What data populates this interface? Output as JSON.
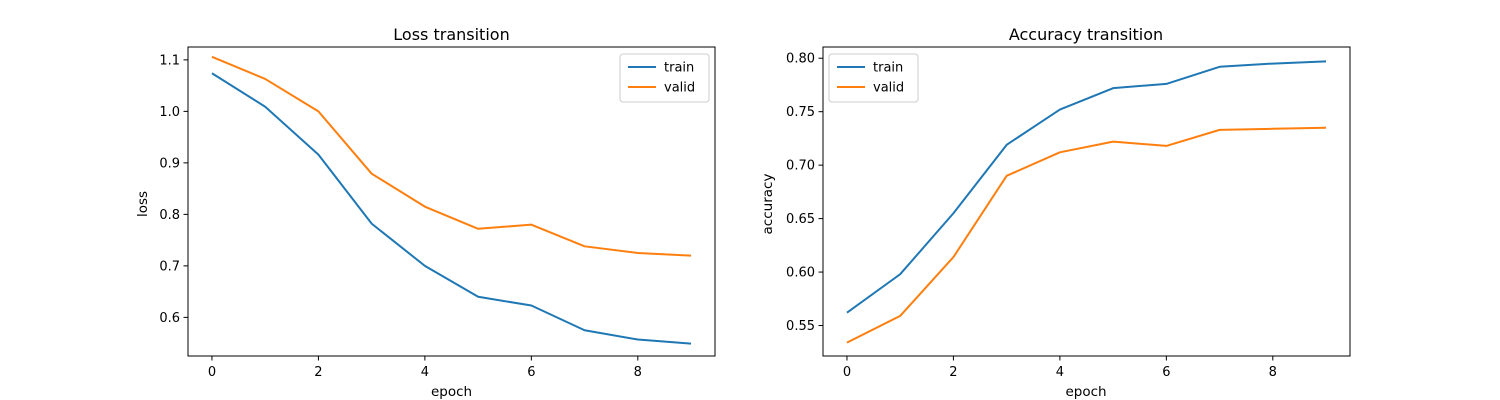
{
  "chart_data": [
    {
      "type": "line",
      "title": "Loss transition",
      "xlabel": "epoch",
      "ylabel": "loss",
      "x": [
        0,
        1,
        2,
        3,
        4,
        5,
        6,
        7,
        8,
        9
      ],
      "xlim": [
        -0.45,
        9.45
      ],
      "ylim": [
        0.525,
        1.125
      ],
      "xticks": [
        0,
        2,
        4,
        6,
        8
      ],
      "xtick_labels": [
        "0",
        "2",
        "4",
        "6",
        "8"
      ],
      "yticks": [
        0.6,
        0.7,
        0.8,
        0.9,
        1.0,
        1.1
      ],
      "ytick_labels": [
        "0.6",
        "0.7",
        "0.8",
        "0.9",
        "1.0",
        "1.1"
      ],
      "grid": false,
      "legend_position": "top-right",
      "series": [
        {
          "name": "train",
          "color": "#1f77b4",
          "values": [
            1.074,
            1.009,
            0.916,
            0.782,
            0.7,
            0.64,
            0.623,
            0.575,
            0.557,
            0.549
          ]
        },
        {
          "name": "valid",
          "color": "#ff7f0e",
          "values": [
            1.106,
            1.063,
            1.0,
            0.879,
            0.815,
            0.772,
            0.78,
            0.738,
            0.725,
            0.72
          ]
        }
      ]
    },
    {
      "type": "line",
      "title": "Accuracy transition",
      "xlabel": "epoch",
      "ylabel": "accuracy",
      "x": [
        0,
        1,
        2,
        3,
        4,
        5,
        6,
        7,
        8,
        9
      ],
      "xlim": [
        -0.45,
        9.45
      ],
      "ylim": [
        0.5215,
        0.8105
      ],
      "xticks": [
        0,
        2,
        4,
        6,
        8
      ],
      "xtick_labels": [
        "0",
        "2",
        "4",
        "6",
        "8"
      ],
      "yticks": [
        0.55,
        0.6,
        0.65,
        0.7,
        0.75,
        0.8
      ],
      "ytick_labels": [
        "0.55",
        "0.60",
        "0.65",
        "0.70",
        "0.75",
        "0.80"
      ],
      "grid": false,
      "legend_position": "top-left",
      "series": [
        {
          "name": "train",
          "color": "#1f77b4",
          "values": [
            0.562,
            0.598,
            0.655,
            0.719,
            0.752,
            0.772,
            0.776,
            0.792,
            0.795,
            0.797
          ]
        },
        {
          "name": "valid",
          "color": "#ff7f0e",
          "values": [
            0.534,
            0.559,
            0.614,
            0.69,
            0.712,
            0.722,
            0.718,
            0.733,
            0.734,
            0.735
          ]
        }
      ]
    }
  ]
}
